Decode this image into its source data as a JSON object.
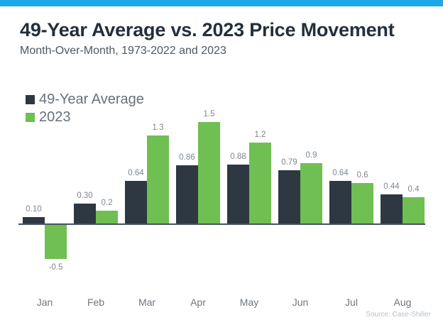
{
  "colors": {
    "topbar": "#1ba7e8",
    "bar_dark": "#2e3842",
    "bar_green": "#6fbf53",
    "axis": "#47525e",
    "title_text": "#232f3b"
  },
  "chart_data": {
    "type": "bar",
    "title": "49-Year Average vs. 2023 Price Movement",
    "subtitle": "Month-Over-Month, 1973-2022 and 2023",
    "source": "Source: Case-Shiller",
    "categories": [
      "Jan",
      "Feb",
      "Mar",
      "Apr",
      "May",
      "Jun",
      "Jul",
      "Aug"
    ],
    "series": [
      {
        "name": "49-Year Average",
        "color": "#2e3842",
        "values": [
          0.1,
          0.3,
          0.64,
          0.86,
          0.88,
          0.79,
          0.64,
          0.44
        ],
        "labels": [
          "0.10",
          "0.30",
          "0.64",
          "0.86",
          "0.88",
          "0.79",
          "0.64",
          "0.44"
        ]
      },
      {
        "name": "2023",
        "color": "#6fbf53",
        "values": [
          -0.5,
          0.2,
          1.3,
          1.5,
          1.2,
          0.9,
          0.6,
          0.4
        ],
        "labels": [
          "-0.5",
          "0.2",
          "1.3",
          "1.5",
          "1.2",
          "0.9",
          "0.6",
          "0.4"
        ]
      }
    ],
    "xlabel": "",
    "ylabel": "",
    "ylim": [
      -0.5,
      1.5
    ],
    "grid": false,
    "legend_position": "top-left",
    "value_labels": true
  }
}
